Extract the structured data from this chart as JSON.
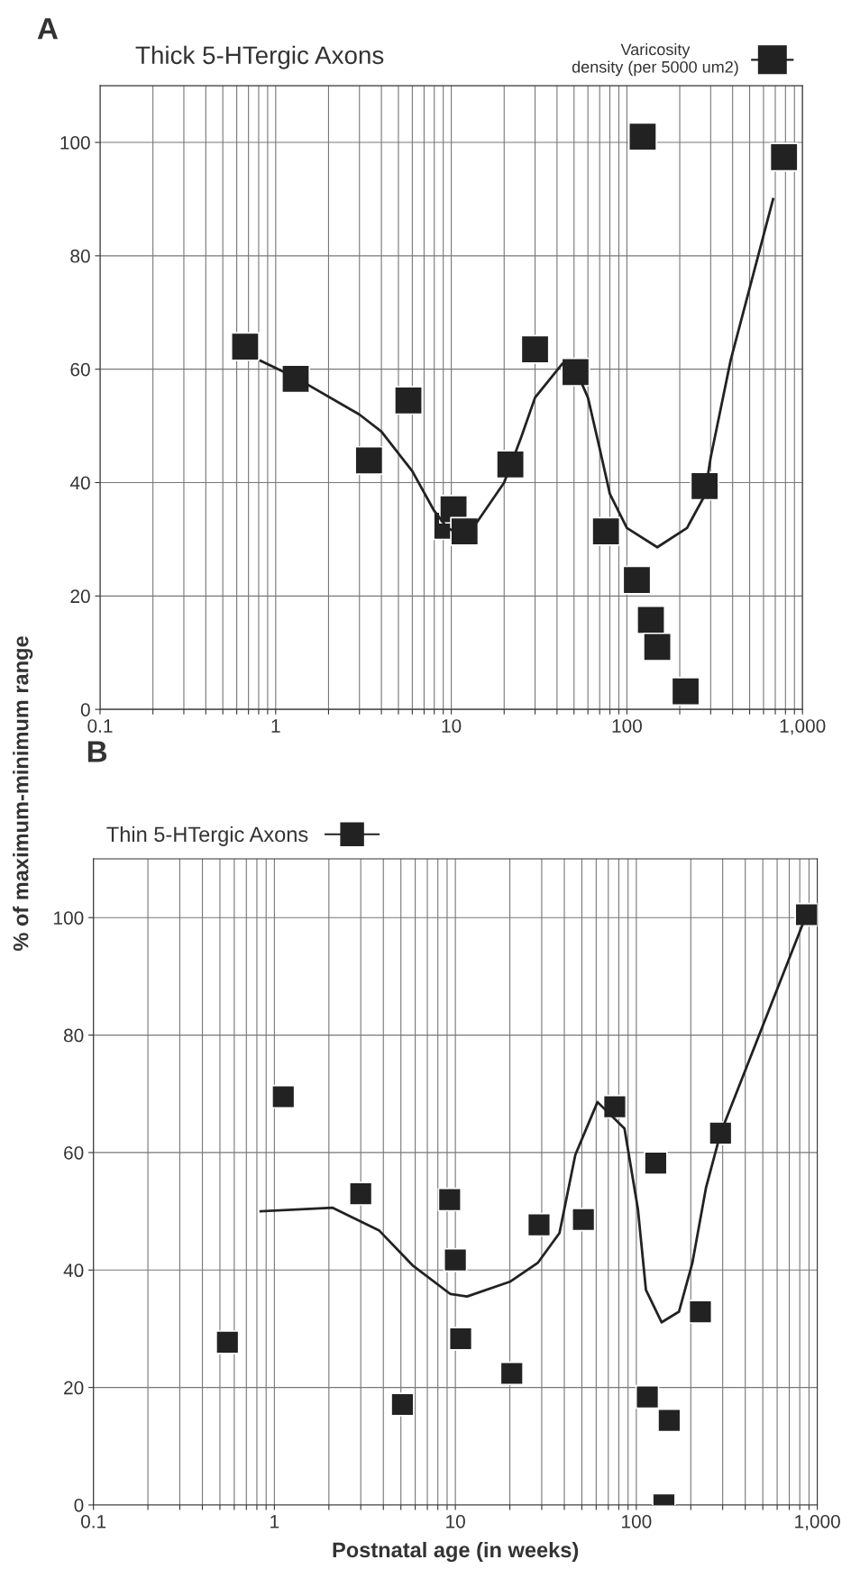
{
  "chart_data": [
    {
      "type": "scatter",
      "title": "A",
      "subtitle": "Thick 5-HTergic Axons",
      "log": "x",
      "grid": true,
      "legend": "top right",
      "xlim": [
        0.1,
        1000
      ],
      "ylim": [
        0,
        110
      ],
      "xticks": [
        0.1,
        {
          "value": 0.2,
          "label": null
        },
        {
          "value": 0.3,
          "label": null
        },
        {
          "value": 0.4,
          "label": null
        },
        {
          "value": 0.5,
          "label": null
        },
        {
          "value": 0.6,
          "label": null
        },
        {
          "value": 0.7,
          "label": null
        },
        {
          "value": 0.8,
          "label": null
        },
        {
          "value": 0.9,
          "label": null
        },
        1,
        {
          "value": 2,
          "label": null
        },
        {
          "value": 3,
          "label": null
        },
        {
          "value": 4,
          "label": null
        },
        {
          "value": 5,
          "label": null
        },
        {
          "value": 6,
          "label": null
        },
        {
          "value": 7,
          "label": null
        },
        {
          "value": 8,
          "label": null
        },
        {
          "value": 9,
          "label": null
        },
        10,
        {
          "value": 20,
          "label": null
        },
        {
          "value": 30,
          "label": null
        },
        {
          "value": 40,
          "label": null
        },
        {
          "value": 50,
          "label": null
        },
        {
          "value": 60,
          "label": null
        },
        {
          "value": 70,
          "label": null
        },
        {
          "value": 80,
          "label": null
        },
        {
          "value": 90,
          "label": null
        },
        100,
        {
          "value": 200,
          "label": null
        },
        {
          "value": 300,
          "label": null
        },
        {
          "value": 400,
          "label": null
        },
        {
          "value": 500,
          "label": null
        },
        {
          "value": 600,
          "label": null
        },
        {
          "value": 700,
          "label": null
        },
        {
          "value": 800,
          "label": null
        },
        {
          "value": 900,
          "label": null
        },
        {
          "value": 1000,
          "label": "1,000"
        }
      ],
      "yticks": [
        0,
        20,
        40,
        60,
        80,
        100
      ],
      "series": [
        {
          "type": "scatter",
          "marker": "square",
          "name": "Varicosity\ndensity (per 5000 um2)",
          "color": "#222222",
          "x": [
            0.67,
            1.3,
            3.4,
            5.7,
            9.5,
            10.3,
            11.9,
            21.7,
            30,
            51,
            76,
            114,
            123,
            137,
            149,
            216,
            277,
            785
          ],
          "values": [
            64,
            58.3,
            43.9,
            54.5,
            32.4,
            35.3,
            31.4,
            43.2,
            63.5,
            59.5,
            31.4,
            22.8,
            101,
            15.8,
            11,
            3.2,
            39.4,
            97.4
          ]
        },
        {
          "type": "line",
          "color": "#222222",
          "x": [
            0.82,
            1.3,
            3,
            4,
            6,
            8,
            9.5,
            11,
            14,
            20,
            25,
            30,
            43,
            51,
            60,
            70,
            80,
            100,
            149,
            220,
            277,
            300,
            390,
            680
          ],
          "values": [
            61.5,
            58.5,
            52,
            49,
            42,
            35,
            32,
            31,
            33,
            40,
            48,
            55,
            61,
            60,
            55,
            46,
            38,
            32,
            28.6,
            32,
            37.7,
            44.4,
            61.6,
            90
          ]
        }
      ]
    },
    {
      "type": "scatter",
      "title": "B",
      "xlabel": "Postnatal age (in weeks)",
      "ylabel": "% of maximum-minimum range",
      "log": "x",
      "grid": true,
      "legend": "top left",
      "xlim": [
        0.1,
        1000
      ],
      "ylim": [
        0,
        110
      ],
      "xticks": [
        0.1,
        {
          "value": 0.2,
          "label": null
        },
        {
          "value": 0.3,
          "label": null
        },
        {
          "value": 0.4,
          "label": null
        },
        {
          "value": 0.5,
          "label": null
        },
        {
          "value": 0.6,
          "label": null
        },
        {
          "value": 0.7,
          "label": null
        },
        {
          "value": 0.8,
          "label": null
        },
        {
          "value": 0.9,
          "label": null
        },
        1,
        {
          "value": 2,
          "label": null
        },
        {
          "value": 3,
          "label": null
        },
        {
          "value": 4,
          "label": null
        },
        {
          "value": 5,
          "label": null
        },
        {
          "value": 6,
          "label": null
        },
        {
          "value": 7,
          "label": null
        },
        {
          "value": 8,
          "label": null
        },
        {
          "value": 9,
          "label": null
        },
        10,
        {
          "value": 20,
          "label": null
        },
        {
          "value": 30,
          "label": null
        },
        {
          "value": 40,
          "label": null
        },
        {
          "value": 50,
          "label": null
        },
        {
          "value": 60,
          "label": null
        },
        {
          "value": 70,
          "label": null
        },
        {
          "value": 80,
          "label": null
        },
        {
          "value": 90,
          "label": null
        },
        100,
        {
          "value": 200,
          "label": null
        },
        {
          "value": 300,
          "label": null
        },
        {
          "value": 400,
          "label": null
        },
        {
          "value": 500,
          "label": null
        },
        {
          "value": 600,
          "label": null
        },
        {
          "value": 700,
          "label": null
        },
        {
          "value": 800,
          "label": null
        },
        {
          "value": 900,
          "label": null
        },
        {
          "value": 1000,
          "label": "1,000"
        }
      ],
      "yticks": [
        0,
        20,
        40,
        60,
        80,
        100
      ],
      "series": [
        {
          "type": "scatter",
          "marker": "square",
          "name": "Thin 5-HTergic Axons",
          "color": "#222222",
          "x": [
            0.55,
            1.12,
            3.0,
            5.1,
            9.3,
            10.0,
            10.7,
            20.5,
            29,
            51,
            76,
            115,
            128,
            142,
            152,
            226,
            292,
            871
          ],
          "values": [
            27.7,
            69.5,
            53,
            17.1,
            52,
            41.7,
            28.3,
            22.4,
            47.7,
            48.6,
            67.8,
            18.4,
            58.2,
            0,
            14.4,
            32.9,
            63.3,
            100.5
          ]
        },
        {
          "type": "line",
          "color": "#222222",
          "x": [
            0.84,
            2.1,
            3.8,
            5.8,
            9.4,
            11.6,
            20,
            28.5,
            37.6,
            46,
            61,
            86,
            102,
            113,
            138,
            172,
            204,
            243,
            292,
            871
          ],
          "values": [
            50,
            50.6,
            46.7,
            40.8,
            35.9,
            35.5,
            38,
            41.2,
            46.3,
            59.6,
            68.6,
            64.1,
            50.4,
            36.6,
            31.1,
            32.9,
            41.2,
            54.1,
            63.3,
            100.5
          ]
        }
      ]
    }
  ]
}
